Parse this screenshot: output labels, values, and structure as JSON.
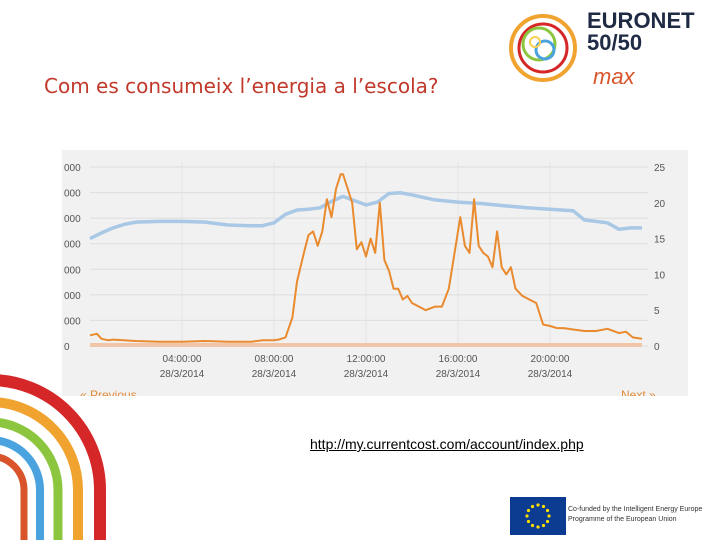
{
  "slide": {
    "title": "Com es consumeix l’energia a l’escola?",
    "url": "http://my.currentcost.com/account/index.php",
    "prev_link": "« Previous",
    "next_link": "Next »"
  },
  "logo": {
    "line1": "EURONET",
    "line2": "50/50",
    "line3": "max"
  },
  "eu_banner": {
    "line1": "Co-funded by the Intelligent Energy Europe",
    "line2": "Programme of the European Union"
  },
  "colors": {
    "orange_series": "#ea8a2e",
    "blue_series": "#a9c8e6",
    "title": "#c0392b"
  },
  "chart_data": {
    "type": "line",
    "title": "",
    "xlabel": "",
    "ylabel": "",
    "x_ticks": [
      {
        "time": "04:00:00",
        "date": "28/3/2014",
        "hour": 4
      },
      {
        "time": "08:00:00",
        "date": "28/3/2014",
        "hour": 8
      },
      {
        "time": "12:00:00",
        "date": "28/3/2014",
        "hour": 12
      },
      {
        "time": "16:00:00",
        "date": "28/3/2014",
        "hour": 16
      },
      {
        "time": "20:00:00",
        "date": "28/3/2014",
        "hour": 20
      }
    ],
    "xlim": [
      0,
      24
    ],
    "left_axis_ticks": [
      "0",
      "000",
      "000",
      "000",
      "000",
      "000",
      "000",
      "000"
    ],
    "right_axis_ticks": [
      "0",
      "5",
      "10",
      "15",
      "20",
      "25"
    ],
    "right_ylim": [
      0,
      25
    ],
    "grid": true,
    "series": [
      {
        "axis": "right",
        "color": "orange",
        "x": [
          0,
          0.3,
          0.5,
          0.8,
          1,
          2,
          3,
          4,
          5,
          6,
          7,
          7.5,
          8,
          8.2,
          8.5,
          8.8,
          9,
          9.3,
          9.5,
          9.7,
          9.9,
          10.1,
          10.3,
          10.5,
          10.7,
          10.9,
          11.0,
          11.2,
          11.4,
          11.6,
          11.8,
          12.0,
          12.2,
          12.4,
          12.6,
          12.8,
          13.0,
          13.2,
          13.4,
          13.6,
          13.8,
          14.0,
          14.3,
          14.6,
          15.0,
          15.3,
          15.6,
          15.9,
          16.1,
          16.3,
          16.5,
          16.7,
          16.9,
          17.1,
          17.3,
          17.5,
          17.7,
          17.9,
          18.1,
          18.3,
          18.5,
          18.8,
          19.1,
          19.4,
          19.7,
          20.0,
          20.3,
          20.6,
          21,
          21.5,
          22,
          22.5,
          23,
          23.3,
          23.6,
          24
        ],
        "values": [
          1.5,
          1.7,
          1.0,
          0.8,
          0.9,
          0.7,
          0.6,
          0.6,
          0.7,
          0.6,
          0.6,
          0.8,
          0.8,
          0.9,
          1.2,
          4,
          9,
          13,
          15.5,
          16,
          14,
          16,
          20.5,
          18,
          22,
          24,
          24,
          22,
          20,
          13.5,
          14.5,
          12.5,
          15,
          13,
          20,
          12,
          10.5,
          8,
          8,
          6.5,
          7,
          6,
          5.5,
          5,
          5.5,
          5.5,
          8,
          14,
          18,
          14,
          13,
          20.5,
          14,
          13,
          12.5,
          11,
          16,
          11,
          10,
          11,
          8,
          7,
          6.5,
          6,
          3,
          2.8,
          2.5,
          2.5,
          2.3,
          2.1,
          2.1,
          2.4,
          1.8,
          2.0,
          1.2,
          1.0
        ]
      },
      {
        "axis": "right",
        "color": "blue",
        "x": [
          0,
          0.5,
          1,
          1.5,
          2,
          3,
          4,
          5,
          6,
          7,
          7.5,
          8,
          8.5,
          9,
          9.5,
          10,
          10.5,
          11,
          11.5,
          12,
          12.5,
          13,
          13.5,
          14,
          15,
          16,
          17,
          18,
          19,
          20,
          20.5,
          21,
          21.5,
          22,
          22.5,
          23,
          23.5,
          24
        ],
        "values": [
          15,
          15.8,
          16.5,
          17,
          17.3,
          17.4,
          17.4,
          17.3,
          16.9,
          16.8,
          16.8,
          17.2,
          18.4,
          19.0,
          19.1,
          19.3,
          20.2,
          20.9,
          20.3,
          19.7,
          20.1,
          21.3,
          21.4,
          21.1,
          20.4,
          20.1,
          19.9,
          19.6,
          19.3,
          19.1,
          19.0,
          18.9,
          17.6,
          17.4,
          17.2,
          16.3,
          16.5,
          16.5
        ]
      }
    ],
    "legend": "none"
  }
}
